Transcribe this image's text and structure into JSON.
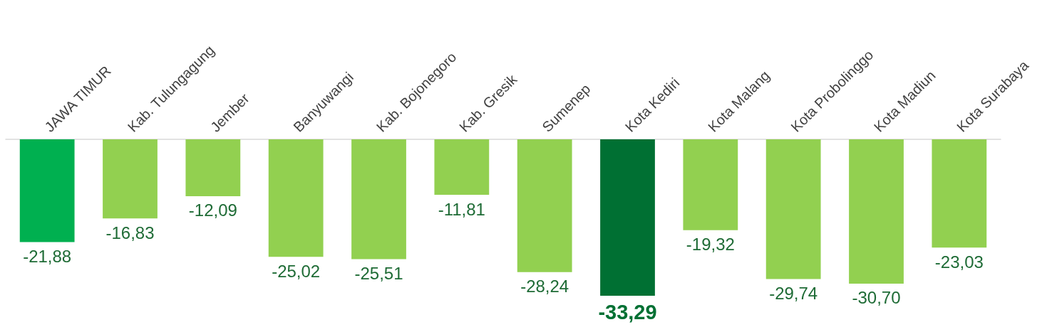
{
  "chart_data": {
    "type": "bar",
    "categories": [
      "JAWA TIMUR",
      "Kab. Tulungagung",
      "Jember",
      "Banyuwangi",
      "Kab. Bojonegoro",
      "Kab. Gresik",
      "Sumenep",
      "Kota Kediri",
      "Kota Malang",
      "Kota Probolinggo",
      "Kota Madiun",
      "Kota Surabaya"
    ],
    "values": [
      -21.88,
      -16.83,
      -12.09,
      -25.02,
      -25.51,
      -11.81,
      -28.24,
      -33.29,
      -19.32,
      -29.74,
      -30.7,
      -23.03
    ],
    "colors": [
      "#00b050",
      "#92d050",
      "#92d050",
      "#92d050",
      "#92d050",
      "#92d050",
      "#92d050",
      "#007033",
      "#92d050",
      "#92d050",
      "#92d050",
      "#92d050"
    ],
    "value_labels": [
      "-21,88",
      "-16,83",
      "-12,09",
      "-25,02",
      "-25,51",
      "-11,81",
      "-28,24",
      "-33,29",
      "-19,32",
      "-29,74",
      "-30,70",
      "-23,03"
    ],
    "grid": false
  }
}
